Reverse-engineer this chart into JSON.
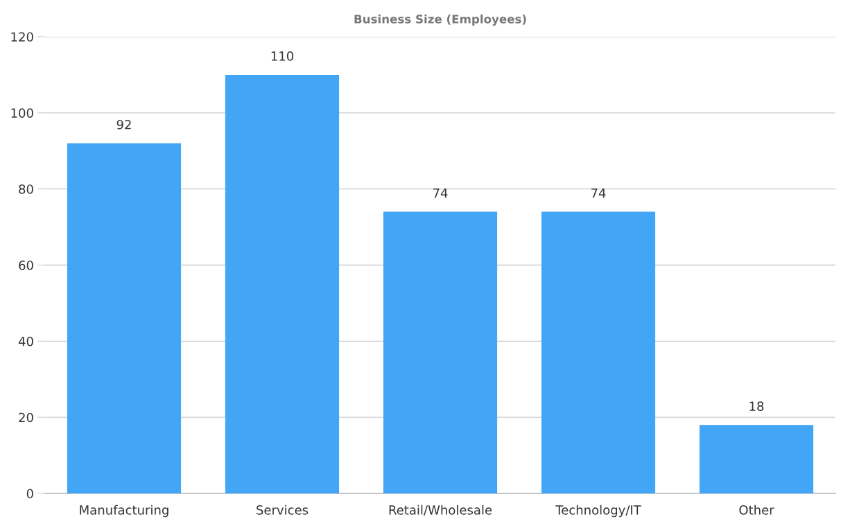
{
  "chart_data": {
    "type": "bar",
    "title": "Business Size (Employees)",
    "categories": [
      "Manufacturing",
      "Services",
      "Retail/Wholesale",
      "Technology/IT",
      "Other"
    ],
    "values": [
      92,
      110,
      74,
      74,
      18
    ],
    "color": "#42a5f5",
    "ylim": [
      0,
      120
    ],
    "yticks": [
      0,
      20,
      40,
      60,
      80,
      100,
      120
    ],
    "grid": "y",
    "data_labels": true
  }
}
